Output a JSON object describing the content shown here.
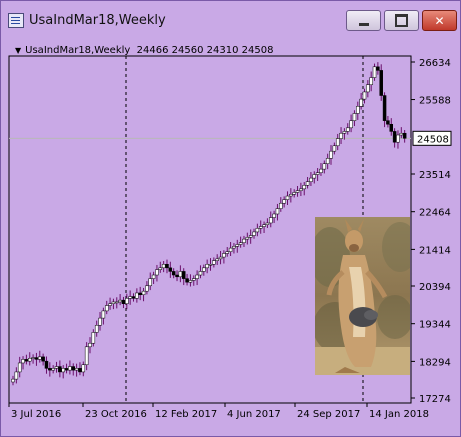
{
  "window": {
    "title": "UsaIndMar18,Weekly",
    "buttons": {
      "minimize": "minimize",
      "maximize": "maximize",
      "close": "✕"
    }
  },
  "chart_info": {
    "symbol": "UsaIndMar18,Weekly",
    "ohlc": "24466 24560 24310 24508"
  },
  "chart_data": {
    "type": "candlestick",
    "y_ticks": [
      "26634",
      "25588",
      "24508",
      "23514",
      "22464",
      "21414",
      "20394",
      "19344",
      "18294",
      "17274"
    ],
    "x_ticks": [
      "3 Jul 2016",
      "23 Oct 2016",
      "12 Feb 2017",
      "4 Jun 2017",
      "24 Sep 2017",
      "14 Jan 2018"
    ],
    "current_price": "24508",
    "ylim": [
      17274,
      26634
    ],
    "period_separators": [
      "2016-10-23",
      "2018-01-14"
    ],
    "background_color": "#c9a9e6",
    "bull_color": "#ffffff",
    "bear_color": "#000000",
    "wick_color": "#6a0f6a",
    "closes": [
      17800,
      18000,
      18250,
      18350,
      18300,
      18380,
      18400,
      18350,
      18420,
      18300,
      18100,
      18050,
      18100,
      18150,
      18000,
      18100,
      18050,
      18150,
      18050,
      18100,
      18000,
      18200,
      18700,
      18800,
      19100,
      19300,
      19500,
      19700,
      19850,
      19900,
      19950,
      19950,
      20000,
      19900,
      20050,
      20100,
      20050,
      20200,
      20150,
      20250,
      20400,
      20600,
      20700,
      20850,
      20900,
      21000,
      20900,
      20800,
      20700,
      20650,
      20800,
      20600,
      20500,
      20550,
      20600,
      20700,
      20800,
      20900,
      21000,
      21000,
      21100,
      21150,
      21200,
      21300,
      21350,
      21450,
      21500,
      21550,
      21600,
      21700,
      21750,
      21800,
      21900,
      22000,
      22050,
      22100,
      22150,
      22300,
      22400,
      22550,
      22700,
      22800,
      22900,
      22950,
      23000,
      23050,
      23100,
      23200,
      23300,
      23400,
      23500,
      23550,
      23650,
      23800,
      23950,
      24150,
      24300,
      24500,
      24650,
      24700,
      24800,
      25000,
      25200,
      25400,
      25600,
      25800,
      26000,
      26200,
      26500,
      26400,
      25700,
      25000,
      24900,
      24700,
      24400,
      24600,
      24650,
      24508
    ]
  },
  "image": {
    "subject": "kangaroo-photo"
  }
}
